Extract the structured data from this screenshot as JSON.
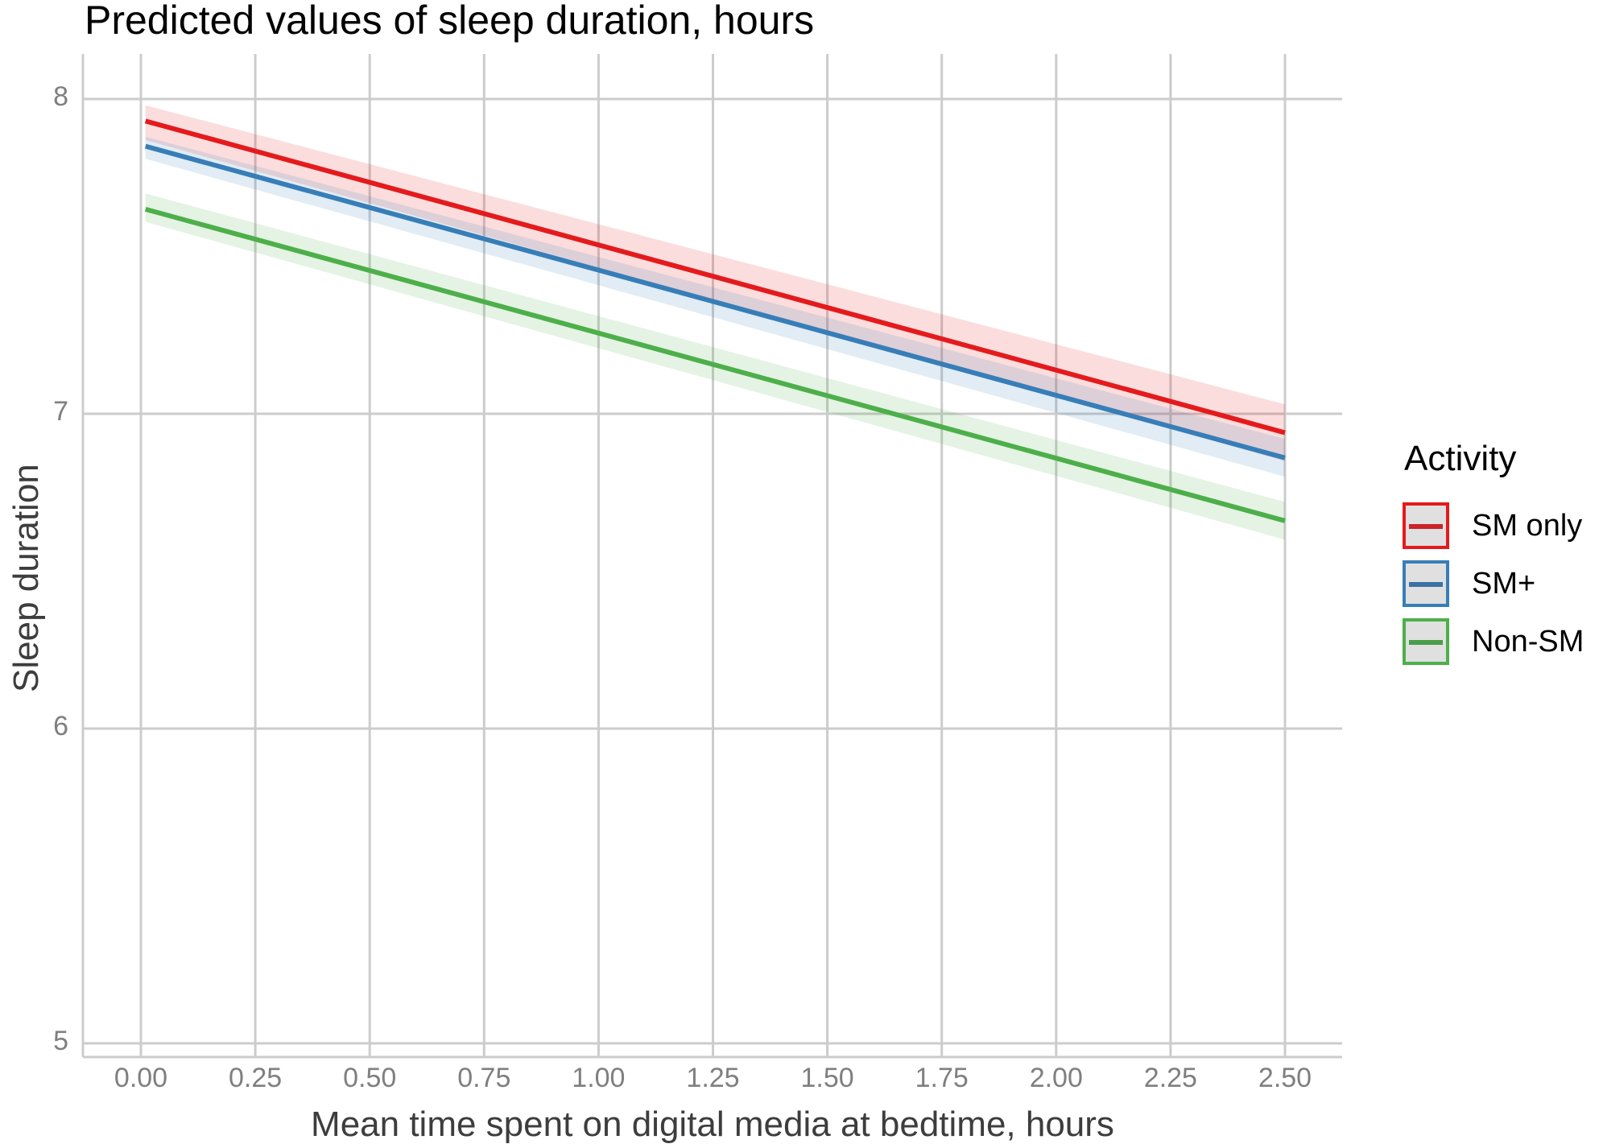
{
  "title": "Predicted values of sleep duration, hours",
  "x_axis": {
    "label": "Mean time spent on digital media at bedtime, hours",
    "ticks": [
      "0.00",
      "0.25",
      "0.50",
      "0.75",
      "1.00",
      "1.25",
      "1.50",
      "1.75",
      "2.00",
      "2.25",
      "2.50"
    ]
  },
  "y_axis": {
    "label": "Sleep duration",
    "ticks": [
      "5",
      "6",
      "7",
      "8"
    ]
  },
  "legend": {
    "title": "Activity",
    "items": [
      {
        "label": "SM only",
        "color": "#e41a1c"
      },
      {
        "label": "SM+",
        "color": "#377eb8"
      },
      {
        "label": "Non-SM",
        "color": "#4daf4a"
      }
    ]
  },
  "chart_data": {
    "type": "line",
    "title": "Predicted values of sleep duration, hours",
    "xlabel": "Mean time spent on digital media at bedtime, hours",
    "ylabel": "Sleep duration",
    "xlim": [
      -0.1,
      2.6
    ],
    "ylim": [
      5,
      8.1
    ],
    "x_ticks": [
      0.0,
      0.25,
      0.5,
      0.75,
      1.0,
      1.25,
      1.5,
      1.75,
      2.0,
      2.25,
      2.5
    ],
    "y_ticks": [
      5,
      6,
      7,
      8
    ],
    "grid": true,
    "legend_title": "Activity",
    "legend_position": "right",
    "x": [
      0.01,
      2.5
    ],
    "series": [
      {
        "name": "SM only",
        "color": "#e41a1c",
        "values": [
          7.93,
          6.94
        ],
        "ci_lower": [
          7.87,
          6.85
        ],
        "ci_upper": [
          7.98,
          7.03
        ]
      },
      {
        "name": "SM+",
        "color": "#377eb8",
        "values": [
          7.85,
          6.86
        ],
        "ci_lower": [
          7.81,
          6.8
        ],
        "ci_upper": [
          7.88,
          6.92
        ]
      },
      {
        "name": "Non-SM",
        "color": "#4daf4a",
        "values": [
          7.65,
          6.66
        ],
        "ci_lower": [
          7.61,
          6.6
        ],
        "ci_upper": [
          7.7,
          6.72
        ]
      }
    ]
  }
}
